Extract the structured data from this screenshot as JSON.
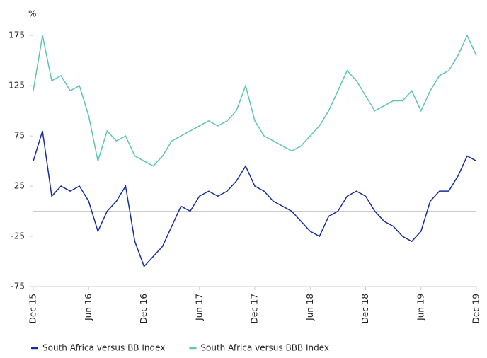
{
  "chart_data": {
    "type": "line",
    "y_label": "%",
    "categories": [
      "Dec 15",
      null,
      null,
      null,
      null,
      null,
      "Jun 16",
      null,
      null,
      null,
      null,
      null,
      "Dec 16",
      null,
      null,
      null,
      null,
      null,
      "Jun 17",
      null,
      null,
      null,
      null,
      null,
      "Dec 17",
      null,
      null,
      null,
      null,
      null,
      "Jun 18",
      null,
      null,
      null,
      null,
      null,
      "Dec 18",
      null,
      null,
      null,
      null,
      null,
      "Jun 19",
      null,
      null,
      null,
      null,
      null,
      "Dec 19"
    ],
    "series": [
      {
        "name": "South Africa versus BB Index",
        "color": "#1a2d9c",
        "values": [
          50,
          80,
          15,
          25,
          20,
          25,
          10,
          -20,
          0,
          10,
          25,
          -30,
          -55,
          -45,
          -35,
          -15,
          5,
          0,
          15,
          20,
          15,
          20,
          30,
          45,
          25,
          20,
          10,
          5,
          0,
          -10,
          -20,
          -25,
          -5,
          0,
          15,
          20,
          15,
          0,
          -10,
          -15,
          -25,
          -30,
          -20,
          10,
          20,
          20,
          35,
          55,
          50
        ]
      },
      {
        "name": "South Africa versus BBB Index",
        "color": "#5cc4b8",
        "values": [
          120,
          175,
          130,
          135,
          120,
          125,
          95,
          50,
          80,
          70,
          75,
          55,
          50,
          45,
          55,
          70,
          75,
          80,
          85,
          90,
          85,
          90,
          100,
          125,
          90,
          75,
          70,
          65,
          60,
          65,
          75,
          85,
          100,
          120,
          140,
          130,
          115,
          100,
          105,
          110,
          110,
          120,
          100,
          120,
          135,
          140,
          155,
          175,
          155
        ]
      }
    ],
    "ylim": [
      -75,
      185
    ],
    "yticks": [
      175,
      125,
      75,
      25,
      -25,
      -75
    ]
  }
}
